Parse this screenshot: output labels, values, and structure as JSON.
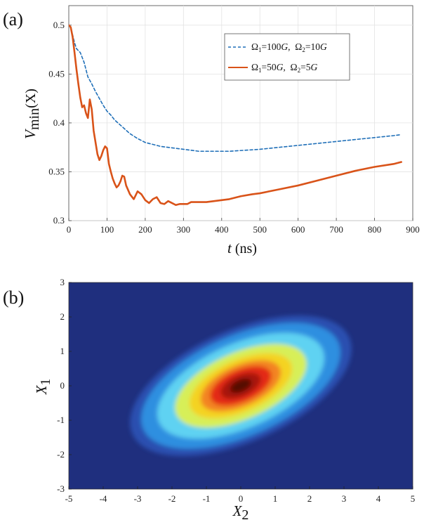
{
  "chart_data": [
    {
      "panel_label": "(a)",
      "type": "line",
      "xlabel_var": "t",
      "xlabel_unit": " (ns)",
      "ylabel_var": "V",
      "ylabel_sub": "min",
      "ylabel_arg": "(X)",
      "xlim": [
        0,
        900
      ],
      "ylim": [
        0.3,
        0.52
      ],
      "xticks": [
        "0",
        "100",
        "200",
        "300",
        "400",
        "500",
        "600",
        "700",
        "800",
        "900"
      ],
      "yticks": [
        "0.3",
        "0.35",
        "0.4",
        "0.45",
        "0.5"
      ],
      "grid": true,
      "legend_position": "top-right",
      "series": [
        {
          "name": "Ω1=100G,  Ω2=10G",
          "legend_parts": [
            "Ω",
            "1",
            "=100",
            "G",
            ",  Ω",
            "2",
            "=10",
            "G"
          ],
          "color": "#1f6fb8",
          "style": "dashed",
          "x": [
            0,
            5,
            10,
            15,
            20,
            30,
            40,
            50,
            60,
            70,
            80,
            90,
            100,
            110,
            120,
            140,
            160,
            180,
            200,
            220,
            240,
            260,
            280,
            300,
            320,
            340,
            360,
            380,
            400,
            420,
            440,
            460,
            480,
            500,
            550,
            600,
            650,
            700,
            750,
            800,
            850,
            870
          ],
          "y": [
            0.5,
            0.498,
            0.49,
            0.482,
            0.476,
            0.472,
            0.462,
            0.447,
            0.44,
            0.432,
            0.425,
            0.418,
            0.412,
            0.408,
            0.403,
            0.396,
            0.389,
            0.384,
            0.38,
            0.378,
            0.376,
            0.375,
            0.374,
            0.373,
            0.372,
            0.371,
            0.371,
            0.371,
            0.371,
            0.371,
            0.3715,
            0.372,
            0.3725,
            0.373,
            0.375,
            0.377,
            0.379,
            0.381,
            0.383,
            0.385,
            0.387,
            0.388
          ]
        },
        {
          "name": "Ω1=50G,  Ω2=5G",
          "legend_parts": [
            "Ω",
            "1",
            "=50",
            "G",
            ",  Ω",
            "2",
            "=5",
            "G"
          ],
          "color": "#d95319",
          "style": "solid",
          "x": [
            0,
            5,
            10,
            15,
            20,
            25,
            30,
            35,
            40,
            45,
            50,
            55,
            60,
            65,
            70,
            75,
            80,
            85,
            90,
            95,
            100,
            105,
            110,
            115,
            120,
            125,
            130,
            135,
            140,
            145,
            150,
            160,
            170,
            180,
            190,
            200,
            210,
            220,
            230,
            240,
            250,
            260,
            270,
            280,
            290,
            300,
            310,
            320,
            340,
            360,
            380,
            400,
            420,
            450,
            480,
            500,
            550,
            600,
            650,
            700,
            750,
            800,
            850,
            870
          ],
          "y": [
            0.5,
            0.498,
            0.488,
            0.472,
            0.455,
            0.44,
            0.426,
            0.416,
            0.418,
            0.41,
            0.405,
            0.424,
            0.414,
            0.392,
            0.38,
            0.368,
            0.362,
            0.366,
            0.372,
            0.376,
            0.374,
            0.358,
            0.35,
            0.343,
            0.338,
            0.334,
            0.336,
            0.34,
            0.346,
            0.345,
            0.336,
            0.327,
            0.322,
            0.33,
            0.327,
            0.321,
            0.318,
            0.322,
            0.324,
            0.318,
            0.317,
            0.32,
            0.318,
            0.316,
            0.317,
            0.317,
            0.317,
            0.319,
            0.319,
            0.319,
            0.32,
            0.321,
            0.322,
            0.325,
            0.327,
            0.328,
            0.332,
            0.336,
            0.341,
            0.346,
            0.351,
            0.355,
            0.358,
            0.36
          ]
        }
      ]
    },
    {
      "panel_label": "(b)",
      "type": "heatmap",
      "description_fields_only": false,
      "xlabel_var": "X",
      "xlabel_sub": "2",
      "ylabel_var": "X",
      "ylabel_sub": "1",
      "xlim": [
        -5,
        5
      ],
      "ylim": [
        -3,
        3
      ],
      "xticks": [
        "-5",
        "-4",
        "-3",
        "-2",
        "-1",
        "0",
        "1",
        "2",
        "3",
        "4",
        "5"
      ],
      "yticks": [
        "-3",
        "-2",
        "-1",
        "0",
        "1",
        "2",
        "3"
      ],
      "colormap": "jet",
      "colormap_stops": [
        "#1f2f7e",
        "#2a50b0",
        "#2e8fe0",
        "#5fd2f2",
        "#d7ef58",
        "#f4d321",
        "#f38420",
        "#e32b19",
        "#a8120f",
        "#560a06"
      ],
      "peak_center": [
        0,
        0
      ],
      "tilt_degrees": 24,
      "levels": [
        {
          "semi_major": 3.45,
          "semi_minor": 1.62
        },
        {
          "semi_major": 3.1,
          "semi_minor": 1.45
        },
        {
          "semi_major": 2.6,
          "semi_minor": 1.22
        },
        {
          "semi_major": 2.05,
          "semi_minor": 0.97
        },
        {
          "semi_major": 1.6,
          "semi_minor": 0.76
        },
        {
          "semi_major": 1.25,
          "semi_minor": 0.6
        },
        {
          "semi_major": 0.95,
          "semi_minor": 0.46
        },
        {
          "semi_major": 0.62,
          "semi_minor": 0.31
        },
        {
          "semi_major": 0.33,
          "semi_minor": 0.17
        }
      ]
    }
  ]
}
